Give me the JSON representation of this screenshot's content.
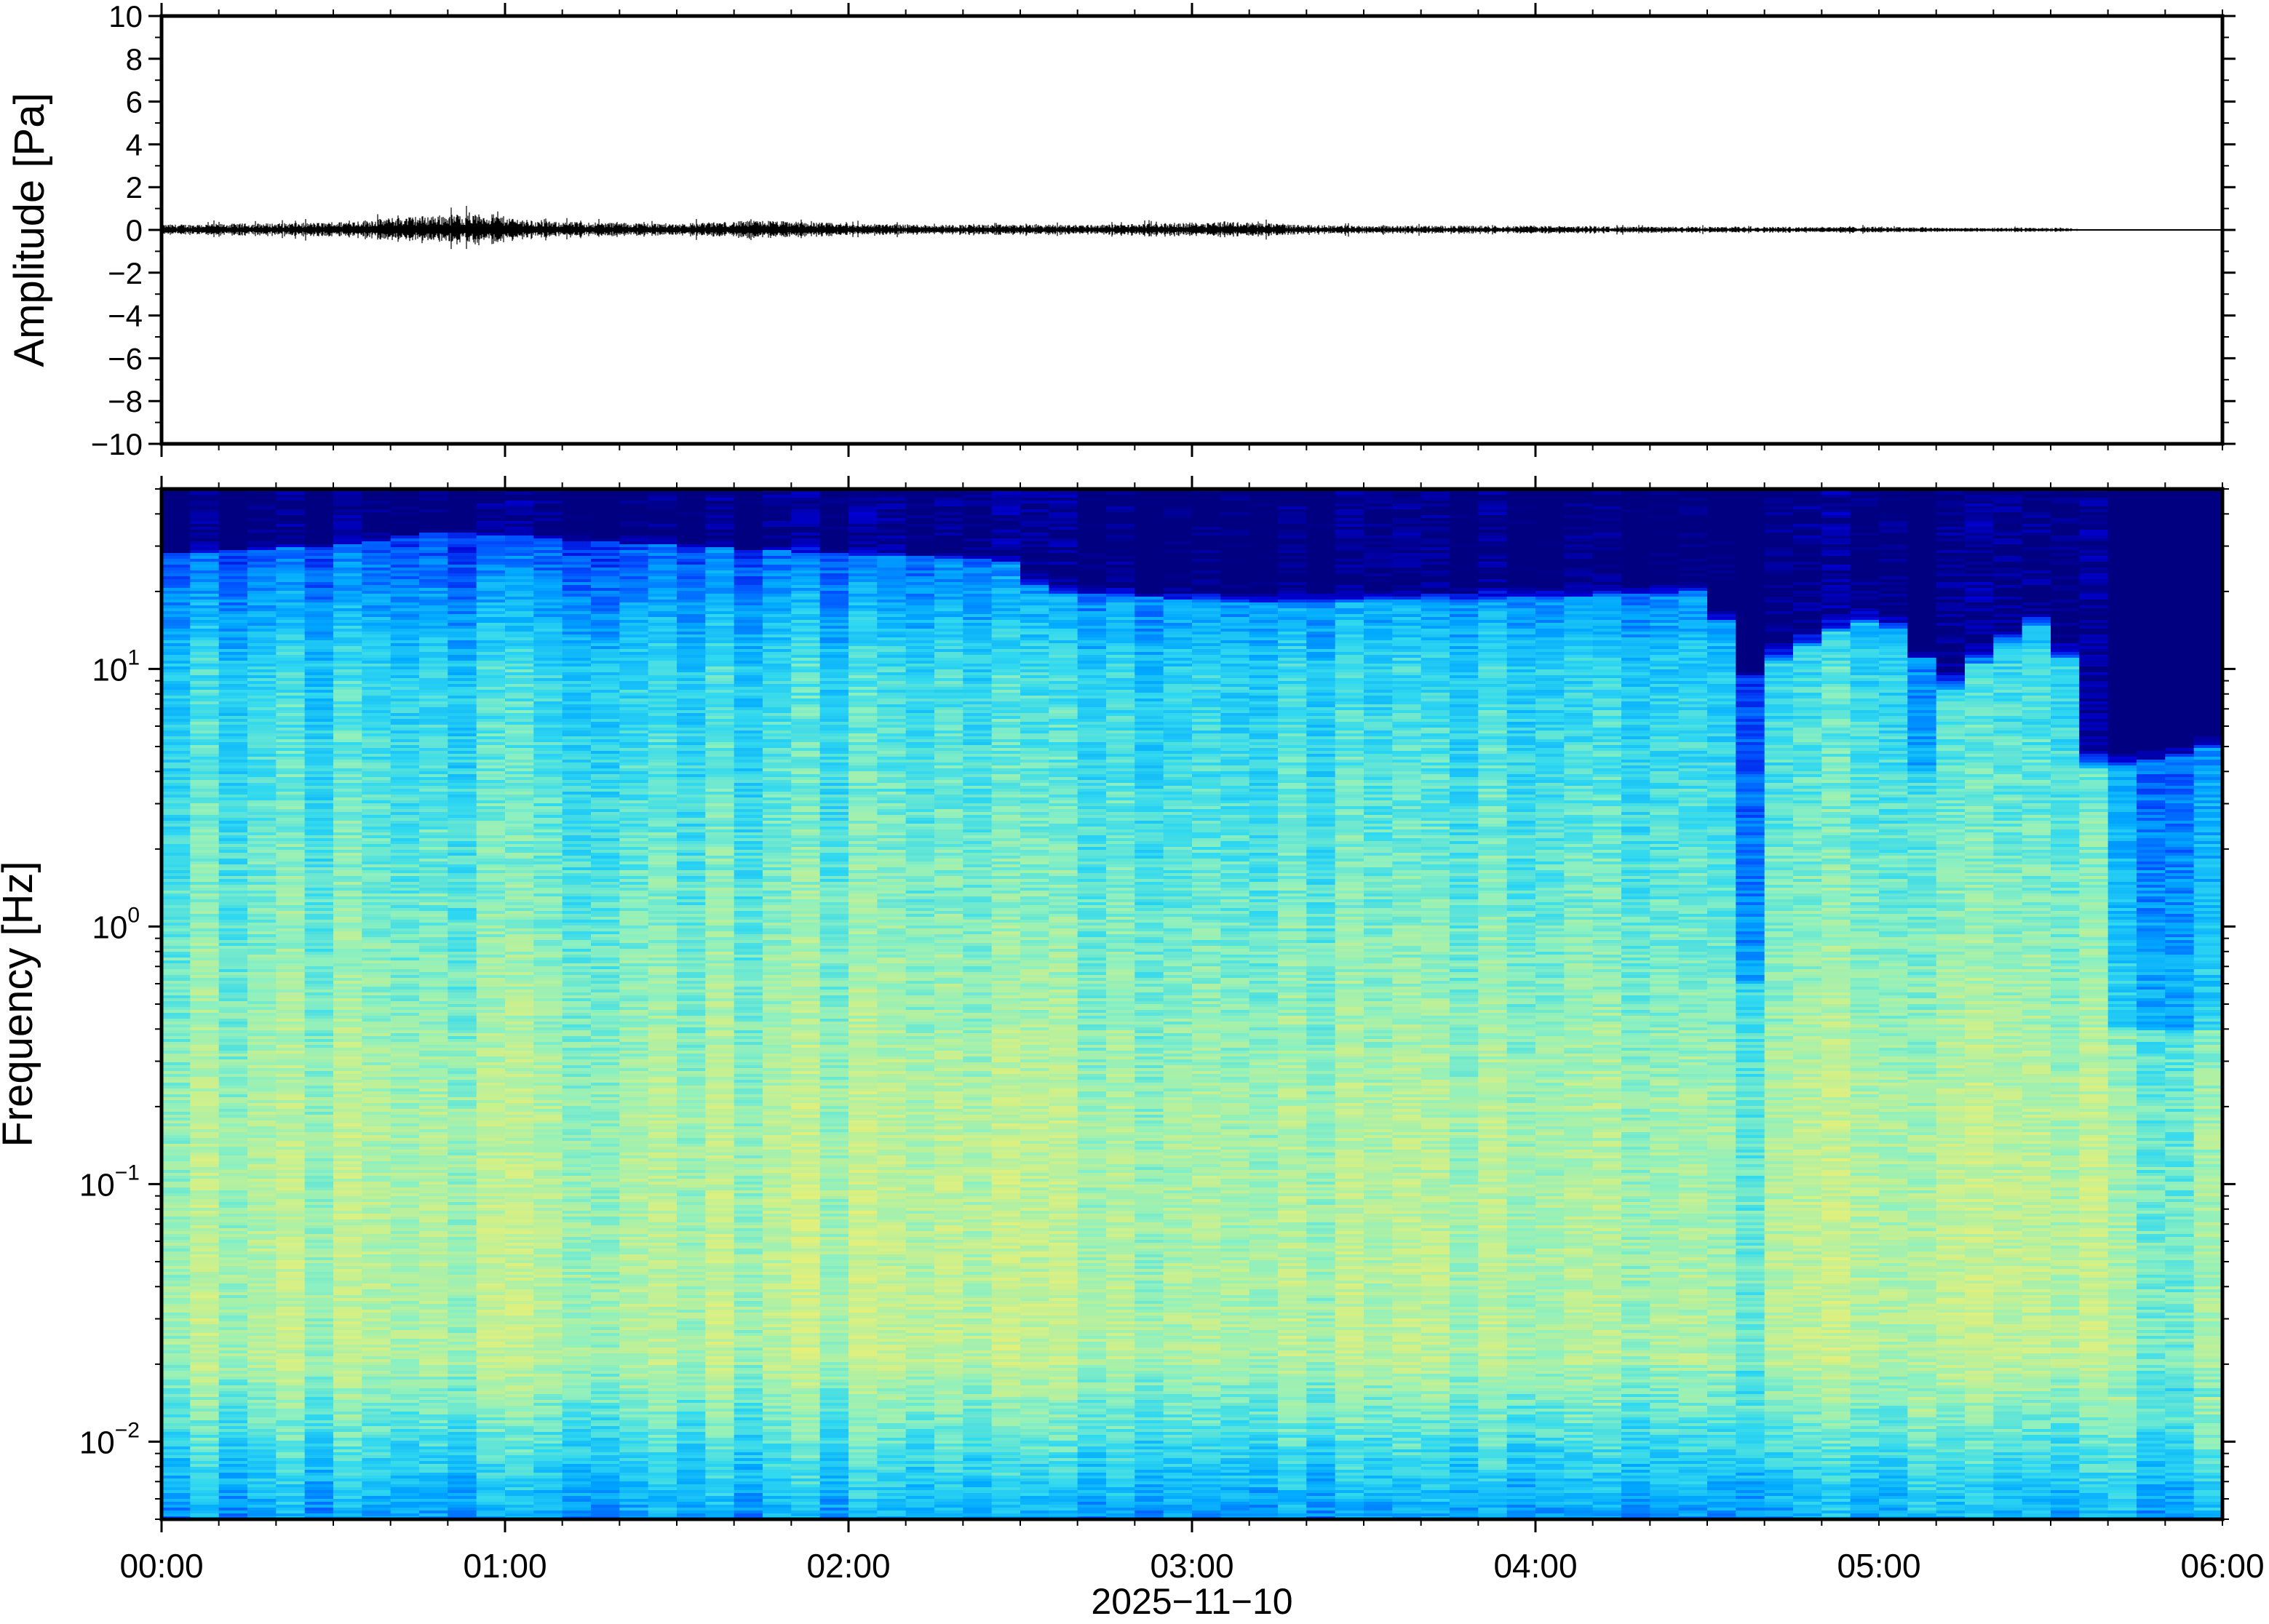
{
  "chart_data": [
    {
      "type": "line",
      "panel": "waveform",
      "ylabel": "Amplitude [Pa]",
      "ylim": [
        -10,
        10
      ],
      "yticks": [
        10,
        8,
        6,
        4,
        2,
        0,
        -2,
        -4,
        -6,
        -8,
        -10
      ],
      "ytick_labels": [
        "10",
        "8",
        "6",
        "4",
        "2",
        "0",
        "−2",
        "−4",
        "−6",
        "−8",
        "−10"
      ],
      "x_range_hours": [
        0,
        6
      ],
      "series": [
        {
          "envelope_time_hours": [
            0.0,
            0.25,
            0.5,
            0.7,
            0.8,
            0.95,
            1.1,
            1.3,
            1.5,
            1.75,
            2.0,
            2.25,
            2.5,
            2.75,
            3.0,
            3.1,
            3.3,
            3.5,
            3.75,
            4.0,
            4.25,
            4.5,
            4.75,
            5.0,
            5.25,
            5.55,
            5.6,
            6.0
          ],
          "envelope_amplitude_pa": [
            0.25,
            0.3,
            0.35,
            0.6,
            0.7,
            0.75,
            0.4,
            0.35,
            0.3,
            0.45,
            0.3,
            0.25,
            0.25,
            0.25,
            0.35,
            0.4,
            0.25,
            0.2,
            0.2,
            0.2,
            0.15,
            0.15,
            0.15,
            0.15,
            0.1,
            0.1,
            0.01,
            0.01
          ]
        }
      ]
    },
    {
      "type": "heatmap",
      "panel": "spectrogram",
      "ylabel": "Frequency [Hz]",
      "yscale": "log",
      "ylim": [
        0.005,
        50
      ],
      "yticks": [
        0.01,
        0.1,
        1,
        10
      ],
      "ytick_labels": [
        {
          "base": "10",
          "exp": "−2"
        },
        {
          "base": "10",
          "exp": "−1"
        },
        {
          "base": "10",
          "exp": "0"
        },
        {
          "base": "10",
          "exp": "1"
        }
      ],
      "colormap": [
        "#000080",
        "#0000d4",
        "#0050ff",
        "#00a8ff",
        "#30d8f0",
        "#8cf0c0",
        "#c8f090",
        "#f0f070",
        "#ffd060"
      ],
      "time_columns": 72,
      "high_freq_cutoff_hz": {
        "time_hours": [
          0.0,
          0.5,
          0.8,
          1.5,
          2.5,
          2.55,
          3.2,
          4.0,
          4.5,
          4.6,
          5.0,
          5.2,
          5.5,
          5.6,
          6.0
        ],
        "freq_hz": [
          28,
          30,
          34,
          30,
          26,
          20,
          18,
          19,
          20,
          9,
          16,
          8,
          16,
          4,
          5
        ]
      },
      "low_power_notches": [
        {
          "time_hours": [
            4.6,
            4.7
          ],
          "freq_hz_below": 0.6
        },
        {
          "time_hours": [
            5.1,
            5.2
          ],
          "freq_hz_below": 4
        },
        {
          "time_hours": [
            5.65,
            6.0
          ],
          "freq_hz_below": 0.4
        }
      ]
    }
  ],
  "xaxis": {
    "tick_labels": [
      "00:00",
      "01:00",
      "02:00",
      "03:00",
      "04:00",
      "05:00",
      "06:00"
    ],
    "tick_hours": [
      0,
      1,
      2,
      3,
      4,
      5,
      6
    ],
    "minor_step_hours": 0.1666667,
    "date_label": "2025−11−10"
  }
}
